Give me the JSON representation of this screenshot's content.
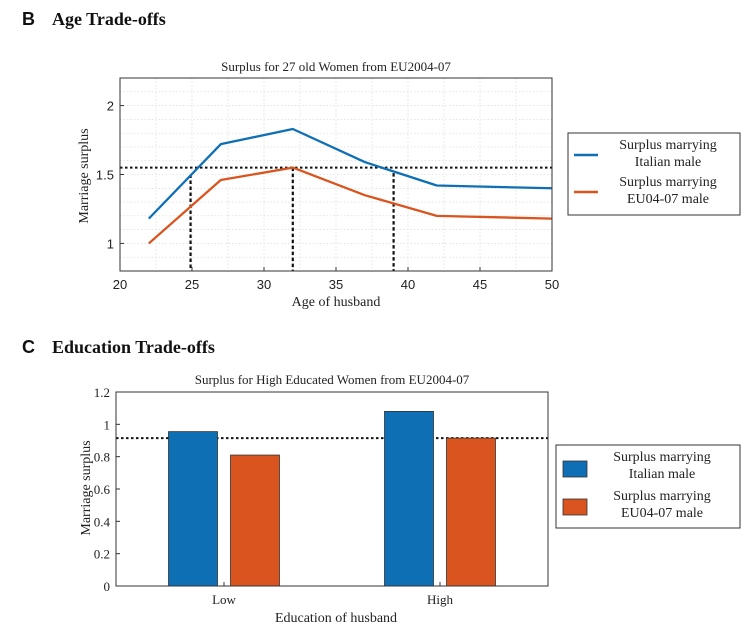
{
  "colors": {
    "blue": "#0f6fb5",
    "orange": "#d9541e"
  },
  "panels": {
    "b": {
      "letter": "B",
      "title": "Age Trade-offs"
    },
    "c": {
      "letter": "C",
      "title": "Education Trade-offs"
    }
  },
  "chart_data": [
    {
      "type": "line",
      "title": "Surplus for 27 old Women from EU2004-07",
      "xlabel": "Age of husband",
      "ylabel": "Marriage surplus",
      "xlim": [
        20,
        50
      ],
      "ylim": [
        0.8,
        2.2
      ],
      "xticks": [
        20,
        25,
        30,
        35,
        40,
        45,
        50
      ],
      "yticks": [
        1,
        1.5,
        2
      ],
      "grid": true,
      "legend_position": "right-outside",
      "series": [
        {
          "name": "Surplus marrying Italian male",
          "legend_lines": [
            "Surplus marrying",
            "Italian male"
          ],
          "color": "#0f6fb5",
          "x": [
            22,
            27,
            32,
            37,
            42,
            50
          ],
          "y": [
            1.18,
            1.72,
            1.83,
            1.59,
            1.42,
            1.4
          ]
        },
        {
          "name": "Surplus marrying EU04-07 male",
          "legend_lines": [
            "Surplus marrying",
            "EU04-07 male"
          ],
          "color": "#d9541e",
          "x": [
            22,
            27,
            32,
            37,
            42,
            50
          ],
          "y": [
            1.0,
            1.46,
            1.55,
            1.35,
            1.2,
            1.18
          ]
        }
      ],
      "reference_lines": {
        "horizontal": [
          1.55
        ],
        "vertical": [
          {
            "x": 24.9,
            "y_top": 1.5
          },
          {
            "x": 32.0,
            "y_top": 1.55
          },
          {
            "x": 39.0,
            "y_top": 1.51
          }
        ]
      }
    },
    {
      "type": "bar",
      "title": "Surplus for High Educated Women from EU2004-07",
      "xlabel": "Education of husband",
      "ylabel": "Marriage surplus",
      "categories": [
        "Low",
        "High"
      ],
      "ylim": [
        0,
        1.2
      ],
      "yticks": [
        0,
        0.2,
        0.4,
        0.6,
        0.8,
        1,
        1.2
      ],
      "grid": false,
      "legend_position": "right-outside",
      "series": [
        {
          "name": "Surplus marrying Italian male",
          "legend_lines": [
            "Surplus marrying",
            "Italian male"
          ],
          "color": "#0f6fb5",
          "values": [
            0.955,
            1.08
          ]
        },
        {
          "name": "Surplus marrying EU04-07 male",
          "legend_lines": [
            "Surplus marrying",
            "EU04-07 male"
          ],
          "color": "#d9541e",
          "values": [
            0.81,
            0.915
          ]
        }
      ],
      "reference_lines": {
        "horizontal": [
          0.915
        ]
      }
    }
  ]
}
